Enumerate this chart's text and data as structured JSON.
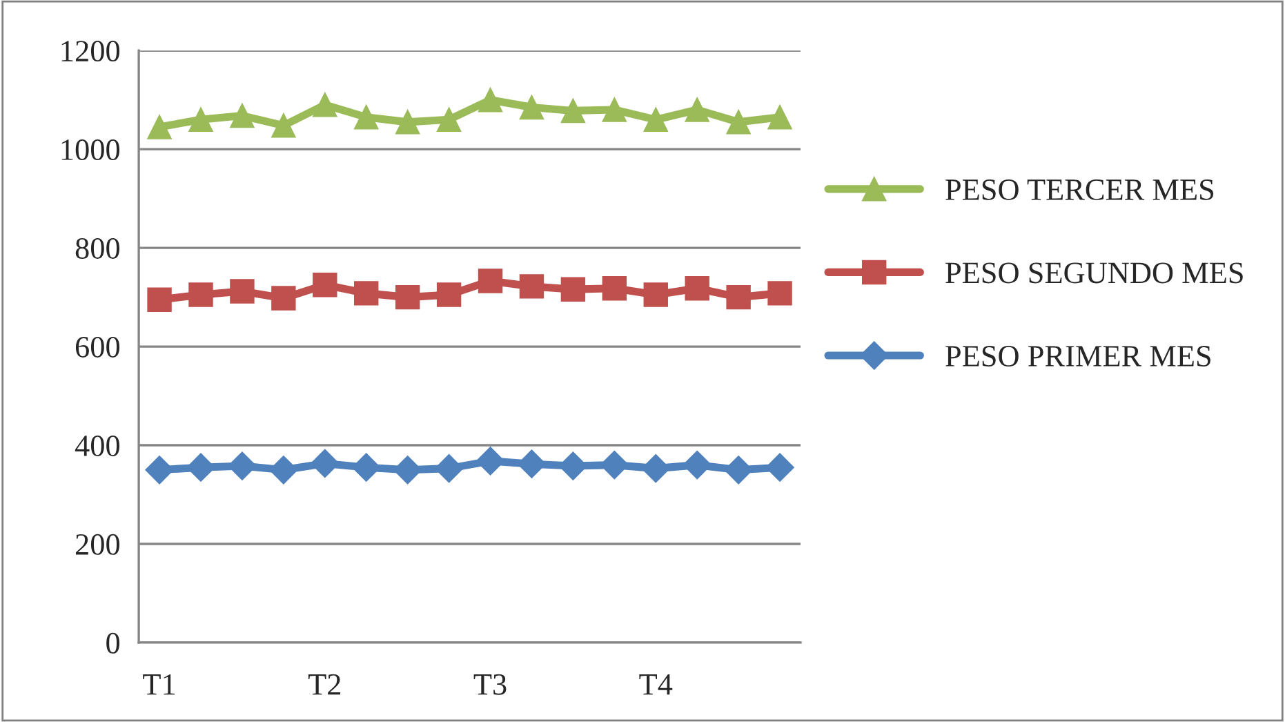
{
  "chart_data": {
    "type": "line",
    "categories": [
      "T1",
      null,
      null,
      null,
      "T2",
      null,
      null,
      null,
      "T3",
      null,
      null,
      null,
      "T4",
      null,
      null,
      null
    ],
    "series": [
      {
        "name": "PESO TERCER MES",
        "color": "#9bbb59",
        "marker": "triangle",
        "values": [
          1045,
          1060,
          1068,
          1048,
          1090,
          1065,
          1055,
          1060,
          1100,
          1085,
          1078,
          1080,
          1060,
          1080,
          1055,
          1065
        ]
      },
      {
        "name": "PESO SEGUNDO MES",
        "color": "#c0504d",
        "marker": "square",
        "values": [
          695,
          705,
          712,
          698,
          725,
          708,
          700,
          705,
          733,
          722,
          716,
          718,
          705,
          718,
          700,
          708
        ]
      },
      {
        "name": "PESO PRIMER MES",
        "color": "#4f81bd",
        "marker": "diamond",
        "values": [
          350,
          355,
          358,
          350,
          363,
          355,
          350,
          353,
          368,
          362,
          358,
          360,
          353,
          360,
          350,
          355
        ]
      }
    ],
    "ylim": [
      0,
      1200
    ],
    "yticks": [
      0,
      200,
      400,
      600,
      800,
      1000,
      1200
    ],
    "grid": "y",
    "legend": "right",
    "line_style": "solid"
  }
}
